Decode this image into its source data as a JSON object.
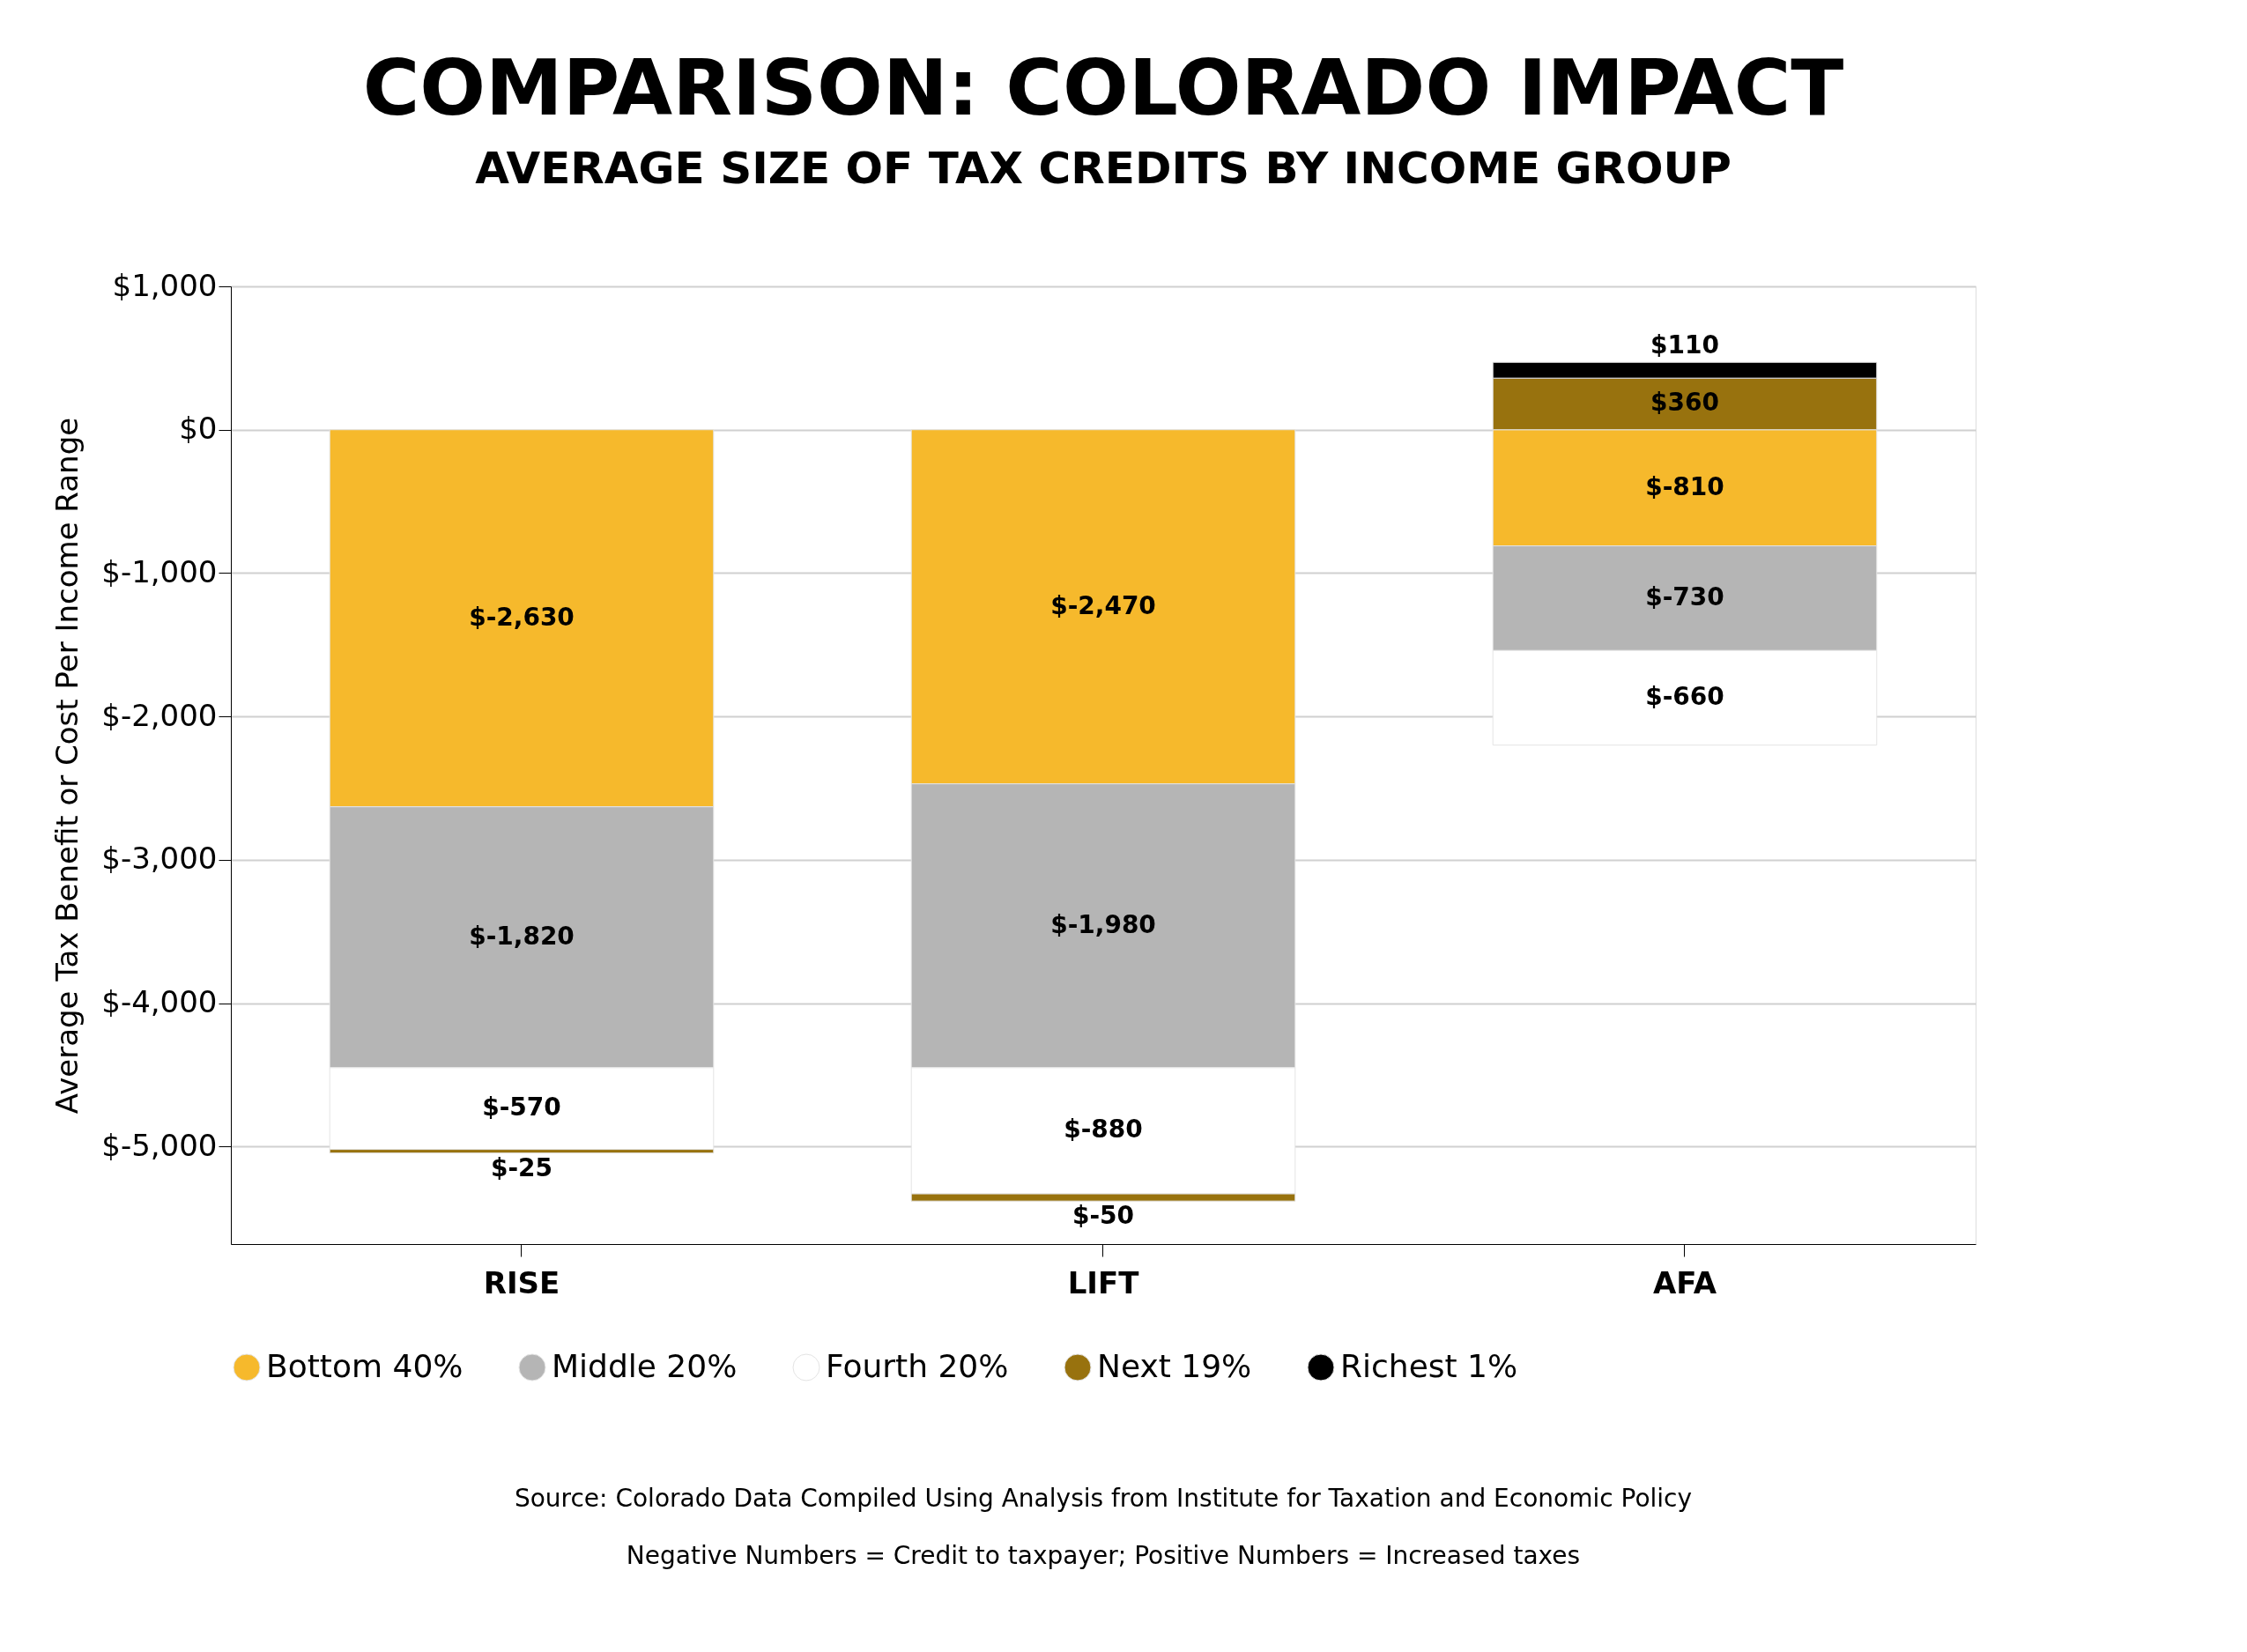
{
  "chart_data": {
    "type": "bar",
    "stacked": true,
    "title": "COMPARISON: COLORADO IMPACT",
    "subtitle": "AVERAGE SIZE OF TAX CREDITS BY INCOME GROUP",
    "ylabel": "Average Tax Benefit or Cost Per Income Range",
    "categories": [
      "RISE",
      "LIFT",
      "AFA"
    ],
    "series": [
      {
        "name": "Bottom 40%",
        "color": "#f6b92c",
        "values": [
          -2630,
          -2470,
          -810
        ],
        "value_labels": [
          "$-2,630",
          "$-2,470",
          "$-810"
        ]
      },
      {
        "name": "Middle 20%",
        "color": "#b5b5b5",
        "values": [
          -1820,
          -1980,
          -730
        ],
        "value_labels": [
          "$-1,820",
          "$-1,980",
          "$-730"
        ]
      },
      {
        "name": "Fourth 20%",
        "color": "#ffffff",
        "values": [
          -570,
          -880,
          -660
        ],
        "value_labels": [
          "$-570",
          "$-880",
          "$-660"
        ]
      },
      {
        "name": "Next 19%",
        "color": "#98720e",
        "values": [
          -25,
          -50,
          360
        ],
        "value_labels": [
          "$-25",
          "$-50",
          "$360"
        ]
      },
      {
        "name": "Richest 1%",
        "color": "#000000",
        "values": [
          null,
          null,
          110
        ],
        "value_labels": [
          null,
          null,
          "$110"
        ]
      }
    ],
    "ylim": [
      -5680,
      1000
    ],
    "yticks": [
      {
        "value": -5000,
        "label": "$-5,000"
      },
      {
        "value": -4000,
        "label": "$-4,000"
      },
      {
        "value": -3000,
        "label": "$-3,000"
      },
      {
        "value": -2000,
        "label": "$-2,000"
      },
      {
        "value": -1000,
        "label": "$-1,000"
      },
      {
        "value": 0,
        "label": "$0"
      },
      {
        "value": 1000,
        "label": "$1,000"
      }
    ],
    "grid": "y",
    "legend": "bottom",
    "annotations": [
      "Source: Colorado Data Compiled Using Analysis from Institute for Taxation and Economic Policy",
      "Negative Numbers = Credit to taxpayer; Positive Numbers = Increased taxes"
    ]
  }
}
